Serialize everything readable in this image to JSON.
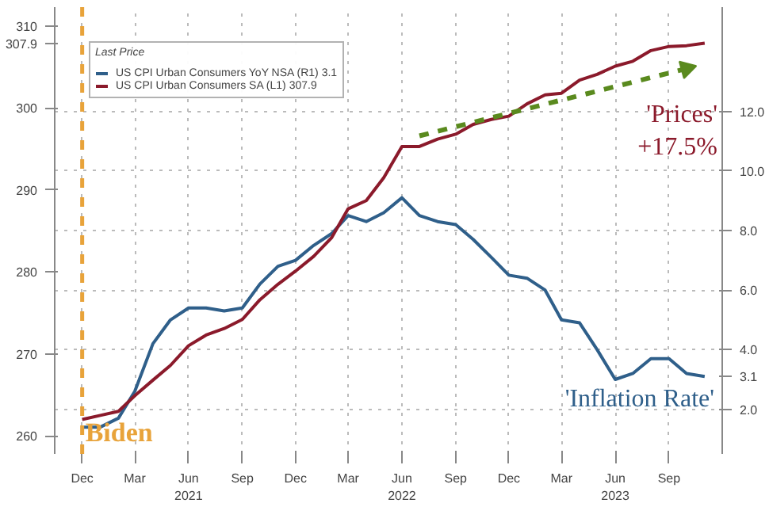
{
  "chart_data": {
    "type": "line",
    "x": [
      "2020-12",
      "2021-01",
      "2021-02",
      "2021-03",
      "2021-04",
      "2021-05",
      "2021-06",
      "2021-07",
      "2021-08",
      "2021-09",
      "2021-10",
      "2021-11",
      "2021-12",
      "2022-01",
      "2022-02",
      "2022-03",
      "2022-04",
      "2022-05",
      "2022-06",
      "2022-07",
      "2022-08",
      "2022-09",
      "2022-10",
      "2022-11",
      "2022-12",
      "2023-01",
      "2023-02",
      "2023-03",
      "2023-04",
      "2023-05",
      "2023-06",
      "2023-07",
      "2023-08",
      "2023-09",
      "2023-10",
      "2023-11"
    ],
    "series": [
      {
        "name": "US CPI Urban Consumers YoY NSA (R1) 3.1",
        "color": "#2f5f8a",
        "axis": "y2",
        "values": [
          1.4,
          1.4,
          1.7,
          2.6,
          4.2,
          5.0,
          5.4,
          5.4,
          5.3,
          5.4,
          6.2,
          6.8,
          7.0,
          7.5,
          7.9,
          8.5,
          8.3,
          8.6,
          9.1,
          8.5,
          8.3,
          8.2,
          7.7,
          7.1,
          6.5,
          6.4,
          6.0,
          5.0,
          4.9,
          4.0,
          3.0,
          3.2,
          3.7,
          3.7,
          3.2,
          3.1
        ]
      },
      {
        "name": "US CPI Urban Consumers SA (L1) 307.9",
        "color": "#8b1a2b",
        "values": [
          262.0,
          262.5,
          263.0,
          264.9,
          266.8,
          268.6,
          271.0,
          272.3,
          273.1,
          274.2,
          276.6,
          278.5,
          280.1,
          281.9,
          284.2,
          287.7,
          288.7,
          291.5,
          295.3,
          295.3,
          296.2,
          296.8,
          298.0,
          298.6,
          299.0,
          300.5,
          301.6,
          301.8,
          303.4,
          304.1,
          305.1,
          305.7,
          307.0,
          307.5,
          307.6,
          307.9
        ]
      },
      {
        "type": "line",
        "color": "#5a8a1e",
        "line_style": "dashed",
        "marker": "triangle",
        "x": [
          "2022-07",
          "2023-10"
        ],
        "values": [
          296.6,
          304.8
        ]
      }
    ],
    "legend_title": "Last Price",
    "xlim": [
      "2020-10-15",
      "2023-12-01"
    ],
    "xticks": [
      {
        "value": "2020-12",
        "label": "Dec"
      },
      {
        "value": "2021-03",
        "label": "Mar"
      },
      {
        "value": "2021-06",
        "label": "Jun\n2021"
      },
      {
        "value": "2021-09",
        "label": "Sep"
      },
      {
        "value": "2021-12",
        "label": "Dec"
      },
      {
        "value": "2022-03",
        "label": "Mar"
      },
      {
        "value": "2022-06",
        "label": "Jun\n2022"
      },
      {
        "value": "2022-09",
        "label": "Sep"
      },
      {
        "value": "2022-12",
        "label": "Dec"
      },
      {
        "value": "2023-03",
        "label": "Mar"
      },
      {
        "value": "2023-06",
        "label": "Jun\n2023"
      },
      {
        "value": "2023-09",
        "label": "Sep"
      }
    ],
    "ylim": [
      257.8,
      312.3
    ],
    "yticks": [
      260,
      270,
      280,
      290,
      300,
      {
        "value": 307.9,
        "label": "307.9"
      },
      310
    ],
    "y2lim": [
      0.5,
      15.5
    ],
    "y2ticks": [
      {
        "value": 2,
        "label": "2.0"
      },
      {
        "value": 3.1,
        "label": "3.1"
      },
      {
        "value": 4,
        "label": "4.0"
      },
      {
        "value": 6,
        "label": "6.0"
      },
      {
        "value": 8,
        "label": "8.0"
      },
      {
        "value": 10,
        "label": "10.0"
      },
      {
        "value": 12,
        "label": "12.0"
      }
    ],
    "ref_lines": [
      {
        "axis": "x",
        "value": "2020-12",
        "label": "Biden",
        "color": "#e8a33a",
        "line_style": "dashed"
      }
    ],
    "annotations": [
      "'Prices' +17.5%",
      "'Inflation Rate'"
    ],
    "grid": true,
    "legend": "top left",
    "line_style": "solid",
    "marker": "none"
  }
}
